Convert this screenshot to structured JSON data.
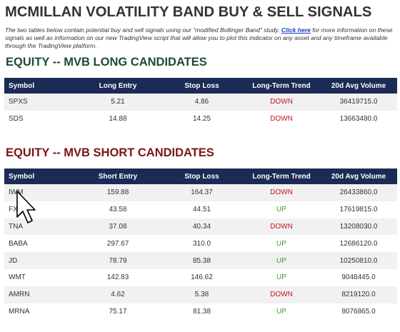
{
  "header": {
    "title": "MCMILLAN VOLATILITY BAND BUY & SELL SIGNALS"
  },
  "intro": {
    "before": "The two tables below contain potential buy and sell signals using our “modified Bollinger Band” study. ",
    "link": "Click here",
    "after": " for more information on these signals as well as information on our new TradingView script that will allow you to plot this indicator on any asset and any timeframe available through the TradingView platform."
  },
  "colors": {
    "UP": "#3f9a2f",
    "DOWN": "#c0161b"
  },
  "sections": [
    {
      "title": "EQUITY -- MVB LONG CANDIDATES",
      "title_color": "#1d4a3a",
      "columns": [
        "Symbol",
        "Long Entry",
        "Stop Loss",
        "Long-Term Trend",
        "20d Avg Volume"
      ],
      "rows": [
        [
          "SPXS",
          "5.21",
          "4.86",
          "DOWN",
          "36419715.0"
        ],
        [
          "SDS",
          "14.88",
          "14.25",
          "DOWN",
          "13663480.0"
        ]
      ]
    },
    {
      "title": "EQUITY -- MVB SHORT CANDIDATES",
      "title_color": "#7a1517",
      "columns": [
        "Symbol",
        "Short Entry",
        "Stop Loss",
        "Long-Term Trend",
        "20d Avg Volume"
      ],
      "rows": [
        [
          "IWM",
          "159.88",
          "164.37",
          "DOWN",
          "26433860.0"
        ],
        [
          "FXI",
          "43.58",
          "44.51",
          "UP",
          "17619815.0"
        ],
        [
          "TNA",
          "37.08",
          "40.34",
          "DOWN",
          "13208030.0"
        ],
        [
          "BABA",
          "297.67",
          "310.0",
          "UP",
          "12686120.0"
        ],
        [
          "JD",
          "78.79",
          "85.38",
          "UP",
          "10250810.0"
        ],
        [
          "WMT",
          "142.83",
          "146.62",
          "UP",
          "9048445.0"
        ],
        [
          "AMRN",
          "4.62",
          "5.38",
          "DOWN",
          "8219120.0"
        ],
        [
          "MRNA",
          "75.17",
          "81.38",
          "UP",
          "8076865.0"
        ]
      ]
    }
  ]
}
